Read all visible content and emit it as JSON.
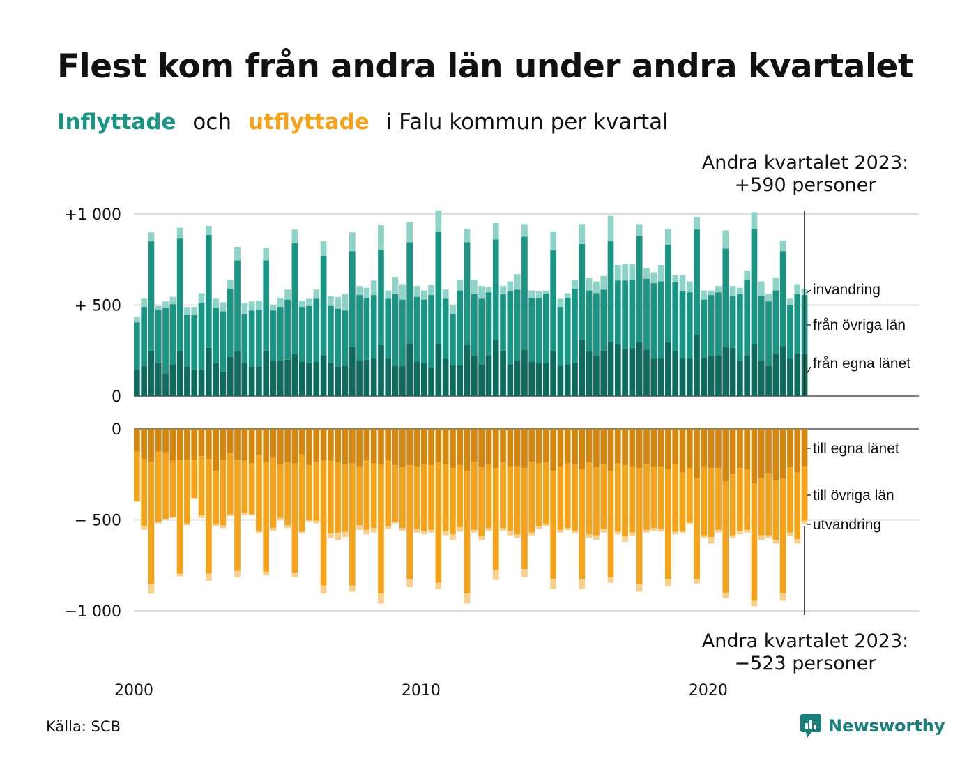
{
  "title": "Flest kom från andra län under andra kvartalet",
  "subtitle": {
    "part1": "Inflyttade",
    "part2": "och",
    "part3": "utflyttade",
    "part4": "i Falu kommun per kvartal"
  },
  "annotations": {
    "top_line1": "Andra kvartalet 2023:",
    "top_line2": "+590 personer",
    "bottom_line1": "Andra kvartalet 2023:",
    "bottom_line2": "−523 personer"
  },
  "source": "Källa: SCB",
  "brand": "Newsworthy",
  "colors": {
    "in_egna": "#0f6b5e",
    "in_ovriga": "#1a9483",
    "in_invandring": "#8dd3c8",
    "ut_egna": "#d4860f",
    "ut_ovriga": "#f5a31a",
    "ut_utvandring": "#f8d08c",
    "grid": "#dddddd",
    "brand": "#1a7f7a"
  },
  "chart_data": {
    "type": "bar",
    "stacked": true,
    "x_range": [
      2000,
      2023.5
    ],
    "x_ticks": [
      "2000",
      "2010",
      "2020"
    ],
    "in_panel": {
      "ylim": [
        0,
        1000
      ],
      "y_ticks": [
        {
          "value": 1000,
          "label": "+1 000"
        },
        {
          "value": 500,
          "label": "+  500"
        },
        {
          "value": 0,
          "label": "0"
        }
      ],
      "series_labels": [
        "invandring",
        "från övriga län",
        "från egna länet"
      ]
    },
    "out_panel": {
      "ylim": [
        -1000,
        0
      ],
      "y_ticks": [
        {
          "value": 0,
          "label": "0"
        },
        {
          "value": -500,
          "label": "−  500"
        },
        {
          "value": -1000,
          "label": "−1 000"
        }
      ],
      "series_labels": [
        "till egna länet",
        "till övriga län",
        "utvandring"
      ]
    },
    "quarters": [
      "2000Q1",
      "2000Q2",
      "2000Q3",
      "2000Q4",
      "2001Q1",
      "2001Q2",
      "2001Q3",
      "2001Q4",
      "2002Q1",
      "2002Q2",
      "2002Q3",
      "2002Q4",
      "2003Q1",
      "2003Q2",
      "2003Q3",
      "2003Q4",
      "2004Q1",
      "2004Q2",
      "2004Q3",
      "2004Q4",
      "2005Q1",
      "2005Q2",
      "2005Q3",
      "2005Q4",
      "2006Q1",
      "2006Q2",
      "2006Q3",
      "2006Q4",
      "2007Q1",
      "2007Q2",
      "2007Q3",
      "2007Q4",
      "2008Q1",
      "2008Q2",
      "2008Q3",
      "2008Q4",
      "2009Q1",
      "2009Q2",
      "2009Q3",
      "2009Q4",
      "2010Q1",
      "2010Q2",
      "2010Q3",
      "2010Q4",
      "2011Q1",
      "2011Q2",
      "2011Q3",
      "2011Q4",
      "2012Q1",
      "2012Q2",
      "2012Q3",
      "2012Q4",
      "2013Q1",
      "2013Q2",
      "2013Q3",
      "2013Q4",
      "2014Q1",
      "2014Q2",
      "2014Q3",
      "2014Q4",
      "2015Q1",
      "2015Q2",
      "2015Q3",
      "2015Q4",
      "2016Q1",
      "2016Q2",
      "2016Q3",
      "2016Q4",
      "2017Q1",
      "2017Q2",
      "2017Q3",
      "2017Q4",
      "2018Q1",
      "2018Q2",
      "2018Q3",
      "2018Q4",
      "2019Q1",
      "2019Q2",
      "2019Q3",
      "2019Q4",
      "2020Q1",
      "2020Q2",
      "2020Q3",
      "2020Q4",
      "2021Q1",
      "2021Q2",
      "2021Q3",
      "2021Q4",
      "2022Q1",
      "2022Q2",
      "2022Q3",
      "2022Q4",
      "2023Q1",
      "2023Q2"
    ],
    "in_totals": [
      435,
      535,
      900,
      495,
      520,
      545,
      925,
      490,
      490,
      565,
      935,
      535,
      515,
      640,
      820,
      510,
      520,
      525,
      815,
      500,
      540,
      585,
      915,
      525,
      535,
      585,
      850,
      550,
      545,
      560,
      900,
      605,
      595,
      635,
      940,
      580,
      655,
      615,
      955,
      605,
      580,
      610,
      1020,
      585,
      500,
      640,
      920,
      640,
      605,
      600,
      950,
      605,
      630,
      670,
      945,
      580,
      575,
      580,
      905,
      535,
      565,
      640,
      945,
      650,
      630,
      660,
      990,
      720,
      725,
      725,
      945,
      705,
      680,
      720,
      920,
      665,
      665,
      630,
      985,
      580,
      580,
      605,
      910,
      605,
      595,
      690,
      1010,
      630,
      560,
      650,
      855,
      535,
      615,
      590
    ],
    "in_ovriga_top": [
      405,
      490,
      850,
      475,
      485,
      505,
      865,
      445,
      445,
      510,
      885,
      485,
      465,
      590,
      745,
      450,
      470,
      475,
      745,
      470,
      490,
      530,
      840,
      490,
      495,
      535,
      770,
      495,
      480,
      470,
      795,
      555,
      540,
      555,
      805,
      535,
      560,
      530,
      845,
      545,
      530,
      555,
      905,
      535,
      450,
      580,
      845,
      560,
      535,
      570,
      860,
      560,
      575,
      585,
      875,
      540,
      540,
      560,
      800,
      490,
      540,
      590,
      835,
      580,
      565,
      585,
      850,
      635,
      635,
      640,
      880,
      645,
      620,
      630,
      830,
      625,
      575,
      570,
      915,
      530,
      555,
      570,
      810,
      550,
      560,
      640,
      920,
      550,
      520,
      580,
      795,
      500,
      560,
      555
    ],
    "in_egna": [
      145,
      165,
      250,
      185,
      125,
      175,
      245,
      160,
      145,
      145,
      265,
      180,
      135,
      215,
      245,
      180,
      160,
      160,
      250,
      195,
      195,
      200,
      230,
      190,
      185,
      190,
      225,
      185,
      160,
      165,
      270,
      195,
      200,
      205,
      280,
      205,
      165,
      165,
      285,
      190,
      180,
      155,
      290,
      205,
      170,
      170,
      280,
      220,
      175,
      225,
      310,
      250,
      175,
      195,
      255,
      190,
      180,
      180,
      245,
      165,
      175,
      185,
      310,
      245,
      220,
      250,
      300,
      285,
      260,
      265,
      295,
      255,
      205,
      205,
      295,
      250,
      210,
      205,
      340,
      210,
      220,
      225,
      270,
      265,
      195,
      225,
      285,
      195,
      165,
      230,
      275,
      205,
      235,
      230
    ],
    "out_totals": [
      -400,
      -555,
      -905,
      -520,
      -500,
      -490,
      -810,
      -530,
      -385,
      -490,
      -835,
      -535,
      -545,
      -480,
      -815,
      -475,
      -475,
      -575,
      -805,
      -560,
      -500,
      -545,
      -815,
      -575,
      -510,
      -520,
      -905,
      -600,
      -610,
      -595,
      -895,
      -555,
      -580,
      -570,
      -960,
      -550,
      -520,
      -560,
      -870,
      -570,
      -580,
      -570,
      -880,
      -585,
      -610,
      -565,
      -960,
      -570,
      -610,
      -560,
      -830,
      -560,
      -585,
      -600,
      -815,
      -585,
      -550,
      -535,
      -880,
      -570,
      -555,
      -575,
      -880,
      -600,
      -610,
      -570,
      -845,
      -580,
      -620,
      -590,
      -895,
      -570,
      -560,
      -565,
      -865,
      -580,
      -575,
      -525,
      -850,
      -600,
      -630,
      -570,
      -930,
      -600,
      -580,
      -570,
      -975,
      -610,
      -600,
      -630,
      -945,
      -590,
      -630,
      -523
    ],
    "out_ovriga_bottom": [
      -400,
      -535,
      -855,
      -510,
      -495,
      -485,
      -795,
      -520,
      -380,
      -475,
      -795,
      -525,
      -530,
      -470,
      -780,
      -460,
      -470,
      -560,
      -785,
      -545,
      -490,
      -530,
      -790,
      -565,
      -500,
      -505,
      -860,
      -575,
      -570,
      -565,
      -860,
      -530,
      -555,
      -545,
      -905,
      -535,
      -510,
      -545,
      -825,
      -550,
      -560,
      -555,
      -845,
      -560,
      -580,
      -540,
      -905,
      -555,
      -590,
      -545,
      -775,
      -545,
      -560,
      -580,
      -770,
      -570,
      -535,
      -525,
      -825,
      -555,
      -545,
      -560,
      -825,
      -580,
      -585,
      -550,
      -815,
      -565,
      -590,
      -570,
      -855,
      -555,
      -545,
      -550,
      -825,
      -565,
      -560,
      -515,
      -825,
      -585,
      -595,
      -555,
      -900,
      -585,
      -560,
      -555,
      -945,
      -585,
      -585,
      -610,
      -905,
      -570,
      -605,
      -505
    ],
    "out_egna": [
      -125,
      -165,
      -185,
      -125,
      -130,
      -175,
      -170,
      -170,
      -170,
      -150,
      -165,
      -230,
      -170,
      -135,
      -170,
      -175,
      -190,
      -145,
      -180,
      -160,
      -195,
      -185,
      -190,
      -140,
      -200,
      -185,
      -175,
      -175,
      -185,
      -195,
      -190,
      -205,
      -175,
      -190,
      -195,
      -175,
      -200,
      -210,
      -200,
      -205,
      -195,
      -200,
      -185,
      -195,
      -215,
      -200,
      -230,
      -180,
      -210,
      -195,
      -215,
      -185,
      -205,
      -205,
      -215,
      -180,
      -190,
      -185,
      -230,
      -205,
      -190,
      -195,
      -220,
      -185,
      -210,
      -195,
      -230,
      -190,
      -200,
      -205,
      -215,
      -195,
      -205,
      -205,
      -220,
      -195,
      -240,
      -215,
      -270,
      -205,
      -215,
      -215,
      -290,
      -250,
      -215,
      -225,
      -300,
      -270,
      -245,
      -280,
      -275,
      -210,
      -240,
      -205
    ]
  }
}
